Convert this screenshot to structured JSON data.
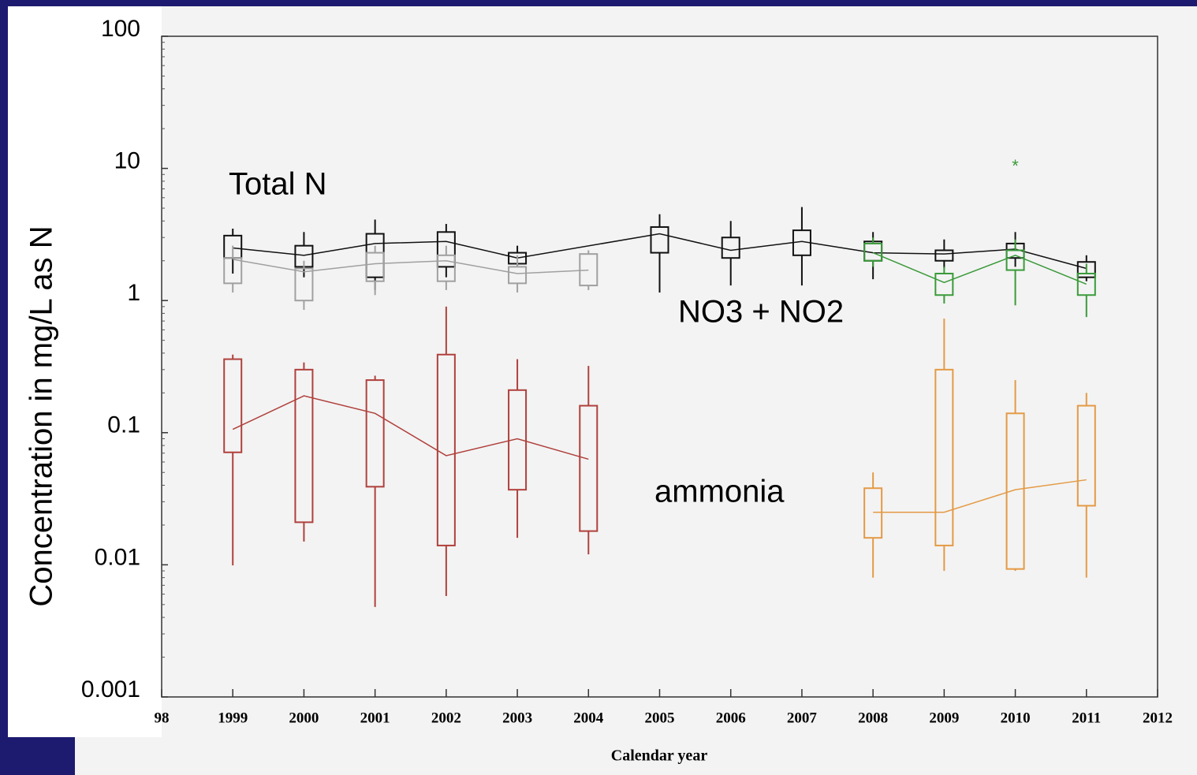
{
  "chart_data": {
    "type": "box",
    "y_label": "Concentration in mg/L as N",
    "x_label": "Calendar year",
    "log_y": true,
    "ylim": [
      0.001,
      100
    ],
    "yticks": [
      0.001,
      0.01,
      0.1,
      1,
      10,
      100
    ],
    "xlim": [
      1998,
      2012
    ],
    "xticks": [
      {
        "value": 1998,
        "label": "98"
      },
      1999,
      2000,
      2001,
      2002,
      2003,
      2004,
      2005,
      2006,
      2007,
      2008,
      2009,
      2010,
      2011,
      2012
    ],
    "annotations": [
      "Total N",
      "NO3 + NO2",
      "ammonia"
    ],
    "series": [
      {
        "color": "#111111",
        "x": [
          1999,
          2000,
          2001,
          2002,
          2003,
          2005,
          2006,
          2007,
          2008,
          2009,
          2010,
          2011
        ],
        "whisker_high": [
          3.5,
          3.3,
          4.1,
          3.8,
          2.6,
          4.5,
          4.0,
          5.1,
          3.3,
          2.9,
          3.3,
          2.2
        ],
        "q3": [
          3.1,
          2.6,
          3.2,
          3.3,
          2.3,
          3.6,
          3.0,
          3.4,
          2.8,
          2.4,
          2.7,
          1.96
        ],
        "median": [
          2.5,
          2.2,
          2.7,
          2.8,
          2.1,
          3.2,
          2.4,
          2.8,
          2.3,
          2.25,
          2.45,
          1.75
        ],
        "q1": [
          2.1,
          1.8,
          1.5,
          1.8,
          1.9,
          2.3,
          2.1,
          2.2,
          2.0,
          2.0,
          2.1,
          1.5
        ],
        "whisker_low": [
          1.6,
          1.5,
          1.2,
          1.5,
          1.8,
          1.15,
          1.3,
          1.3,
          1.45,
          1.75,
          1.8,
          1.4
        ]
      },
      {
        "color": "#a0a0a0",
        "x": [
          1999,
          2000,
          2001,
          2002,
          2003,
          2004
        ],
        "whisker_high": [
          2.6,
          2.0,
          2.6,
          2.6,
          2.2,
          2.4
        ],
        "q3": [
          2.1,
          1.75,
          2.3,
          2.2,
          1.8,
          2.25
        ],
        "median": [
          2.05,
          1.65,
          1.9,
          2.0,
          1.6,
          1.7
        ],
        "q1": [
          1.35,
          1.0,
          1.4,
          1.4,
          1.35,
          1.3
        ],
        "whisker_low": [
          1.15,
          0.85,
          1.1,
          1.2,
          1.15,
          1.2
        ]
      },
      {
        "color": "#3a9a3a",
        "x": [
          2008,
          2009,
          2010,
          2011
        ],
        "whisker_high": [
          3.0,
          1.8,
          2.9,
          1.9
        ],
        "q3": [
          2.7,
          1.6,
          2.4,
          1.6
        ],
        "median": [
          2.3,
          1.37,
          2.2,
          1.33
        ],
        "q1": [
          2.0,
          1.1,
          1.7,
          1.1
        ],
        "whisker_low": [
          1.8,
          0.95,
          0.92,
          0.75
        ],
        "outliers": [
          {
            "x": 2010,
            "value": 10.8
          }
        ]
      },
      {
        "color": "#b0403c",
        "x": [
          1999,
          2000,
          2001,
          2002,
          2003,
          2004
        ],
        "whisker_high": [
          0.39,
          0.34,
          0.27,
          0.9,
          0.36,
          0.32
        ],
        "q3": [
          0.36,
          0.3,
          0.25,
          0.39,
          0.21,
          0.16
        ],
        "median": [
          0.106,
          0.19,
          0.14,
          0.067,
          0.09,
          0.063
        ],
        "q1": [
          0.071,
          0.021,
          0.039,
          0.014,
          0.037,
          0.018
        ],
        "whisker_low": [
          0.0099,
          0.015,
          0.0048,
          0.0058,
          0.016,
          0.012
        ]
      },
      {
        "color": "#e49a45",
        "x": [
          2008,
          2009,
          2010,
          2011
        ],
        "whisker_high": [
          0.05,
          0.73,
          0.25,
          0.2
        ],
        "q3": [
          0.038,
          0.3,
          0.14,
          0.16
        ],
        "median": [
          0.025,
          0.025,
          0.037,
          0.044
        ],
        "q1": [
          0.016,
          0.014,
          0.0093,
          0.028
        ],
        "whisker_low": [
          0.008,
          0.009,
          0.009,
          0.008
        ]
      }
    ]
  }
}
